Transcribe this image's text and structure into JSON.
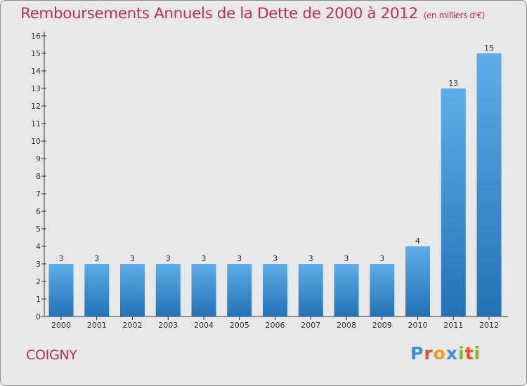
{
  "header": {
    "title": "Remboursements Annuels de la Dette de 2000 à 2012",
    "unit": "(en milliers d'€)"
  },
  "footer": {
    "city": "COIGNY",
    "logo_text": "Proxiti"
  },
  "colors": {
    "title": "#c0304f",
    "bar_top": "#5dade8",
    "bar_bottom": "#2372b5",
    "background": "#e8e8e8"
  },
  "chart_data": {
    "type": "bar",
    "title": "Remboursements Annuels de la Dette de 2000 à 2012",
    "subtitle": "(en milliers d'€)",
    "xlabel": "",
    "ylabel": "",
    "categories": [
      "2000",
      "2001",
      "2002",
      "2003",
      "2004",
      "2005",
      "2006",
      "2007",
      "2008",
      "2009",
      "2010",
      "2011",
      "2012"
    ],
    "values": [
      3,
      3,
      3,
      3,
      3,
      3,
      3,
      3,
      3,
      3,
      4,
      13,
      15
    ],
    "data_labels": [
      "3",
      "3",
      "3",
      "3",
      "3",
      "3",
      "3",
      "3",
      "3",
      "3",
      "4",
      "13",
      "15"
    ],
    "ylim": [
      0,
      16
    ],
    "yticks": [
      "0",
      "1",
      "2",
      "3",
      "4",
      "5",
      "6",
      "7",
      "8",
      "9",
      "10",
      "11",
      "12",
      "13",
      "14",
      "15",
      "16"
    ],
    "grid": false,
    "legend": "none"
  }
}
